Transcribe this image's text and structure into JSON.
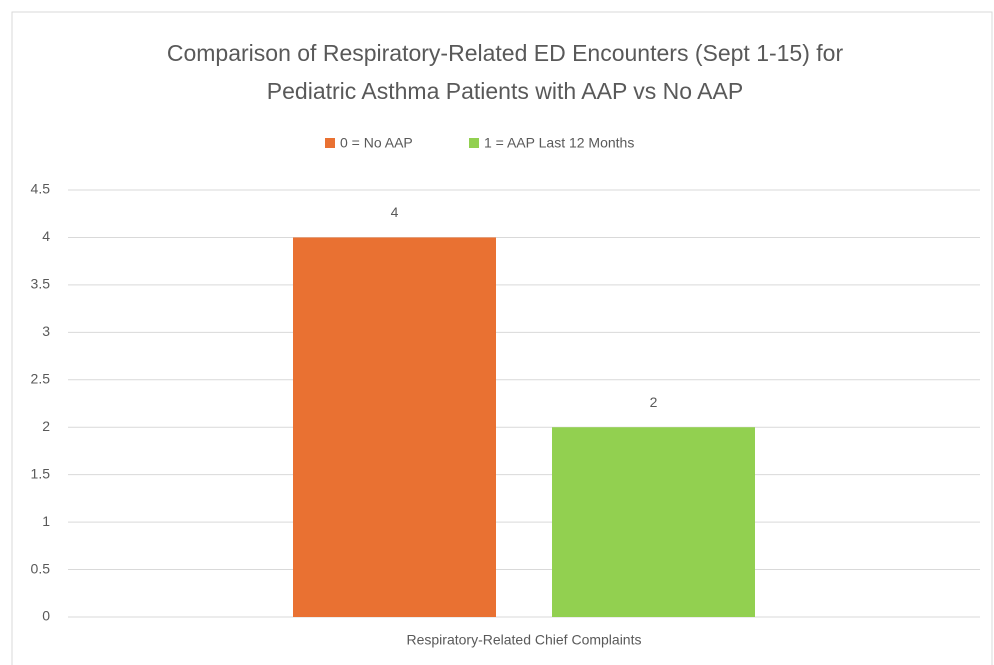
{
  "chart_data": {
    "type": "bar",
    "title": "Comparison of Respiratory-Related ED Encounters (Sept 1-15) for Pediatric Asthma Patients with AAP vs No AAP",
    "categories": [
      "Respiratory-Related Chief Complaints"
    ],
    "series": [
      {
        "name": "0 = No AAP",
        "color": "#e97132",
        "values": [
          4
        ]
      },
      {
        "name": "1 = AAP Last 12 Months",
        "color": "#92d050",
        "values": [
          2
        ]
      }
    ],
    "ylim": [
      0,
      4.5
    ],
    "yticks": [
      0,
      0.5,
      1,
      1.5,
      2,
      2.5,
      3,
      3.5,
      4,
      4.5
    ],
    "grid": true,
    "legend": "top"
  }
}
